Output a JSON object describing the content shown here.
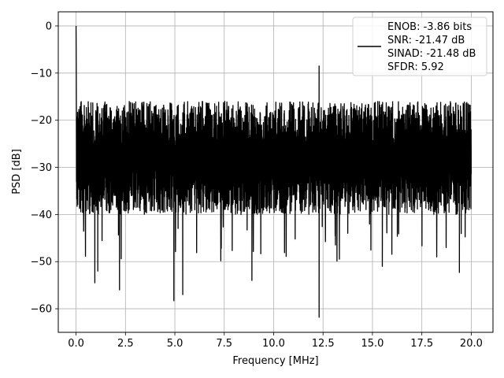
{
  "chart_data": {
    "type": "line",
    "xlabel": "Frequency [MHz]",
    "ylabel": "PSD [dB]",
    "xlim": [
      -0.9,
      21.1
    ],
    "ylim": [
      -65,
      3
    ],
    "x_ticks": [
      0.0,
      2.5,
      5.0,
      7.5,
      10.0,
      12.5,
      15.0,
      17.5,
      20.0
    ],
    "x_tick_labels": [
      "0.0",
      "2.5",
      "5.0",
      "7.5",
      "10.0",
      "12.5",
      "15.0",
      "17.5",
      "20.0"
    ],
    "y_ticks": [
      0,
      -10,
      -20,
      -30,
      -40,
      -50,
      -60
    ],
    "y_tick_labels": [
      "0",
      "−10",
      "−20",
      "−30",
      "−40",
      "−50",
      "−60"
    ],
    "grid": true,
    "legend_position": "top-right",
    "legend_lines": [
      "ENOB: -3.86 bits",
      "SNR: -21.47 dB",
      "SINAD: -21.48 dB",
      "SFDR: 5.92"
    ],
    "series": [
      {
        "color": "#000000",
        "x_range": [
          0,
          20
        ],
        "description_values": {
          "dc_peak_db": 0,
          "noise_top_db": -15,
          "noise_bottom_db": -40,
          "spur_12_3mhz_db": -8.5
        },
        "deep_dips": [
          {
            "x": 0.95,
            "y": -54.5
          },
          {
            "x": 1.1,
            "y": -52
          },
          {
            "x": 2.2,
            "y": -56
          },
          {
            "x": 4.95,
            "y": -58.3
          },
          {
            "x": 5.4,
            "y": -57
          },
          {
            "x": 8.9,
            "y": -54
          },
          {
            "x": 12.3,
            "y": -61.8
          },
          {
            "x": 15.5,
            "y": -51
          },
          {
            "x": 19.4,
            "y": -52.3
          }
        ]
      }
    ]
  },
  "colors": {
    "line": "#000000",
    "grid": "#b0b0b0",
    "axes": "#000000"
  }
}
